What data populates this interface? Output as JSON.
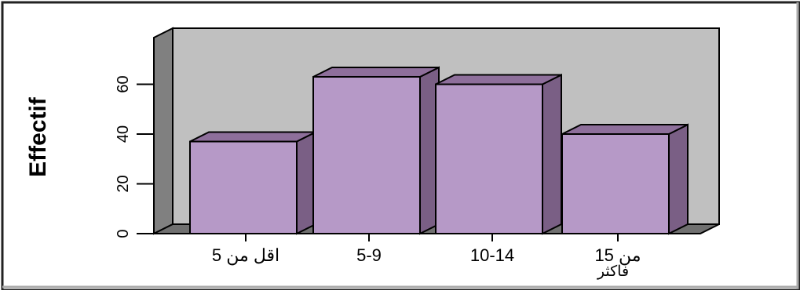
{
  "chart_data": {
    "type": "bar",
    "style": "3d",
    "categories": [
      {
        "label": "اقل من 5",
        "label_line2": ""
      },
      {
        "label": "5-9",
        "label_line2": ""
      },
      {
        "label": "10-14",
        "label_line2": ""
      },
      {
        "label": "15 من",
        "label_line2": "فاكثر"
      }
    ],
    "values": [
      37,
      63,
      60,
      40
    ],
    "title": "",
    "xlabel": "",
    "ylabel": "Effectif",
    "ylim": [
      0,
      70
    ],
    "yticks": [
      0,
      20,
      40,
      60
    ],
    "grid": false,
    "legend": "none"
  },
  "colors": {
    "bar_front": "#b699c7",
    "bar_side": "#7a5f85",
    "bar_top": "#8e6f9b",
    "back_wall": "#c0c0c0",
    "side_wall": "#808080",
    "floor": "#707070",
    "frame_border": "#000000"
  }
}
